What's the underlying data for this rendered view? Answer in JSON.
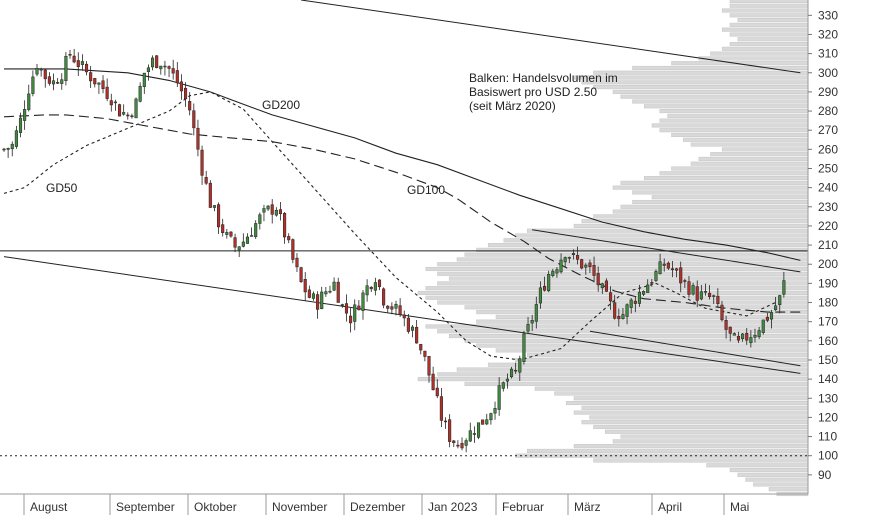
{
  "chart_data": {
    "type": "candlestick",
    "title": "",
    "xlabel": "",
    "ylabel": "",
    "ylim": [
      80,
      338
    ],
    "yticks": [
      90,
      100,
      110,
      120,
      130,
      140,
      150,
      160,
      170,
      180,
      190,
      200,
      210,
      220,
      230,
      240,
      250,
      260,
      270,
      280,
      290,
      300,
      310,
      320,
      330
    ],
    "months": [
      "August",
      "September",
      "Oktober",
      "November",
      "Dezember",
      "Jan 2023",
      "Februar",
      "März",
      "April",
      "Mai"
    ],
    "annotation": [
      "Balken: Handelsvolumen im",
      "Basiswert pro USD 2.50",
      "(seit März 2020)"
    ],
    "ma_labels": {
      "gd50": "GD50",
      "gd100": "GD100",
      "gd200": "GD200"
    },
    "ma_lines": {
      "gd200": [
        [
          0,
          302
        ],
        [
          15,
          302
        ],
        [
          30,
          300
        ],
        [
          40,
          296
        ],
        [
          50,
          290
        ],
        [
          55,
          286
        ],
        [
          65,
          278
        ],
        [
          75,
          272
        ],
        [
          85,
          266
        ],
        [
          95,
          258
        ],
        [
          105,
          252
        ],
        [
          115,
          244
        ],
        [
          125,
          236
        ],
        [
          135,
          229
        ],
        [
          145,
          222
        ],
        [
          155,
          217
        ],
        [
          165,
          213
        ],
        [
          175,
          210
        ],
        [
          185,
          206
        ],
        [
          193,
          202
        ]
      ],
      "gd100": [
        [
          0,
          277
        ],
        [
          10,
          278
        ],
        [
          15,
          278
        ],
        [
          25,
          276
        ],
        [
          35,
          272
        ],
        [
          45,
          268
        ],
        [
          55,
          266
        ],
        [
          65,
          264
        ],
        [
          75,
          260
        ],
        [
          85,
          255
        ],
        [
          95,
          248
        ],
        [
          105,
          240
        ],
        [
          110,
          234
        ],
        [
          118,
          222
        ],
        [
          126,
          212
        ],
        [
          132,
          203
        ],
        [
          140,
          194
        ],
        [
          148,
          186
        ],
        [
          155,
          182
        ],
        [
          165,
          180
        ],
        [
          175,
          177
        ],
        [
          185,
          175
        ],
        [
          193,
          175
        ]
      ],
      "gd50": [
        [
          0,
          237
        ],
        [
          5,
          240
        ],
        [
          12,
          252
        ],
        [
          20,
          262
        ],
        [
          30,
          271
        ],
        [
          40,
          280
        ],
        [
          45,
          288
        ],
        [
          50,
          290
        ],
        [
          58,
          281
        ],
        [
          65,
          264
        ],
        [
          75,
          240
        ],
        [
          85,
          216
        ],
        [
          95,
          193
        ],
        [
          105,
          175
        ],
        [
          112,
          160
        ],
        [
          118,
          152
        ],
        [
          125,
          150
        ],
        [
          135,
          156
        ],
        [
          142,
          170
        ],
        [
          150,
          185
        ],
        [
          158,
          190
        ],
        [
          163,
          185
        ],
        [
          170,
          177
        ],
        [
          180,
          173
        ],
        [
          187,
          180
        ]
      ]
    },
    "horizontal_lines": [
      {
        "y": 207,
        "style": "solid"
      },
      {
        "y": 100,
        "style": "dotted"
      }
    ],
    "trend_lines": [
      {
        "from": [
          0,
          204
        ],
        "to": [
          193,
          143
        ]
      },
      {
        "from": [
          72,
          338
        ],
        "to": [
          193,
          300
        ]
      },
      {
        "from": [
          128,
          218
        ],
        "to": [
          193,
          196
        ]
      },
      {
        "from": [
          142,
          165
        ],
        "to": [
          193,
          147
        ]
      }
    ],
    "volume_profile": [
      {
        "price": 80,
        "volume": 8
      },
      {
        "price": 82.5,
        "volume": 10
      },
      {
        "price": 85,
        "volume": 14
      },
      {
        "price": 87.5,
        "volume": 16
      },
      {
        "price": 90,
        "volume": 18
      },
      {
        "price": 92.5,
        "volume": 20
      },
      {
        "price": 95,
        "volume": 26
      },
      {
        "price": 97.5,
        "volume": 55
      },
      {
        "price": 100,
        "volume": 75
      },
      {
        "price": 102.5,
        "volume": 72
      },
      {
        "price": 105,
        "volume": 60
      },
      {
        "price": 107.5,
        "volume": 50
      },
      {
        "price": 110,
        "volume": 48
      },
      {
        "price": 112.5,
        "volume": 52
      },
      {
        "price": 115,
        "volume": 55
      },
      {
        "price": 117.5,
        "volume": 58
      },
      {
        "price": 120,
        "volume": 56
      },
      {
        "price": 122.5,
        "volume": 60
      },
      {
        "price": 125,
        "volume": 58
      },
      {
        "price": 127.5,
        "volume": 62
      },
      {
        "price": 130,
        "volume": 60
      },
      {
        "price": 132.5,
        "volume": 65
      },
      {
        "price": 135,
        "volume": 70
      },
      {
        "price": 137.5,
        "volume": 88
      },
      {
        "price": 140,
        "volume": 100
      },
      {
        "price": 142.5,
        "volume": 95
      },
      {
        "price": 145,
        "volume": 90
      },
      {
        "price": 147.5,
        "volume": 82
      },
      {
        "price": 150,
        "volume": 75
      },
      {
        "price": 152.5,
        "volume": 72
      },
      {
        "price": 155,
        "volume": 80
      },
      {
        "price": 157.5,
        "volume": 85
      },
      {
        "price": 160,
        "volume": 88
      },
      {
        "price": 162.5,
        "volume": 92
      },
      {
        "price": 165,
        "volume": 95
      },
      {
        "price": 167.5,
        "volume": 98
      },
      {
        "price": 170,
        "volume": 85
      },
      {
        "price": 172.5,
        "volume": 80
      },
      {
        "price": 175,
        "volume": 85
      },
      {
        "price": 177.5,
        "volume": 88
      },
      {
        "price": 180,
        "volume": 95
      },
      {
        "price": 182.5,
        "volume": 98
      },
      {
        "price": 185,
        "volume": 100
      },
      {
        "price": 187.5,
        "volume": 98
      },
      {
        "price": 190,
        "volume": 95
      },
      {
        "price": 192.5,
        "volume": 92
      },
      {
        "price": 195,
        "volume": 95
      },
      {
        "price": 197.5,
        "volume": 98
      },
      {
        "price": 200,
        "volume": 95
      },
      {
        "price": 202.5,
        "volume": 90
      },
      {
        "price": 205,
        "volume": 88
      },
      {
        "price": 207.5,
        "volume": 85
      },
      {
        "price": 210,
        "volume": 82
      },
      {
        "price": 212.5,
        "volume": 78
      },
      {
        "price": 215,
        "volume": 75
      },
      {
        "price": 217.5,
        "volume": 72
      },
      {
        "price": 220,
        "volume": 60
      },
      {
        "price": 222.5,
        "volume": 58
      },
      {
        "price": 225,
        "volume": 55
      },
      {
        "price": 227.5,
        "volume": 50
      },
      {
        "price": 230,
        "volume": 48
      },
      {
        "price": 232.5,
        "volume": 45
      },
      {
        "price": 235,
        "volume": 40
      },
      {
        "price": 237.5,
        "volume": 45
      },
      {
        "price": 240,
        "volume": 50
      },
      {
        "price": 242.5,
        "volume": 48
      },
      {
        "price": 245,
        "volume": 42
      },
      {
        "price": 247.5,
        "volume": 38
      },
      {
        "price": 250,
        "volume": 35
      },
      {
        "price": 252.5,
        "volume": 30
      },
      {
        "price": 255,
        "volume": 28
      },
      {
        "price": 257.5,
        "volume": 25
      },
      {
        "price": 260,
        "volume": 22
      },
      {
        "price": 262.5,
        "volume": 30
      },
      {
        "price": 265,
        "volume": 32
      },
      {
        "price": 267.5,
        "volume": 35
      },
      {
        "price": 270,
        "volume": 38
      },
      {
        "price": 272.5,
        "volume": 40
      },
      {
        "price": 275,
        "volume": 38
      },
      {
        "price": 277.5,
        "volume": 36
      },
      {
        "price": 280,
        "volume": 38
      },
      {
        "price": 282.5,
        "volume": 42
      },
      {
        "price": 285,
        "volume": 45
      },
      {
        "price": 287.5,
        "volume": 48
      },
      {
        "price": 290,
        "volume": 50
      },
      {
        "price": 292.5,
        "volume": 55
      },
      {
        "price": 295,
        "volume": 58
      },
      {
        "price": 297.5,
        "volume": 60
      },
      {
        "price": 300,
        "volume": 55
      },
      {
        "price": 302.5,
        "volume": 45
      },
      {
        "price": 305,
        "volume": 35
      },
      {
        "price": 307.5,
        "volume": 28
      },
      {
        "price": 310,
        "volume": 25
      },
      {
        "price": 312.5,
        "volume": 22
      },
      {
        "price": 315,
        "volume": 20
      },
      {
        "price": 317.5,
        "volume": 18
      },
      {
        "price": 320,
        "volume": 20
      },
      {
        "price": 322.5,
        "volume": 22
      },
      {
        "price": 325,
        "volume": 20
      },
      {
        "price": 327.5,
        "volume": 18
      },
      {
        "price": 330,
        "volume": 20
      },
      {
        "price": 332.5,
        "volume": 22
      },
      {
        "price": 335,
        "volume": 20
      },
      {
        "price": 337.5,
        "volume": 20
      }
    ],
    "price_path": [
      [
        0,
        260
      ],
      [
        2,
        262
      ],
      [
        4,
        275
      ],
      [
        6,
        292
      ],
      [
        8,
        305
      ],
      [
        10,
        298
      ],
      [
        12,
        295
      ],
      [
        14,
        300
      ],
      [
        16,
        310
      ],
      [
        18,
        305
      ],
      [
        20,
        300
      ],
      [
        22,
        296
      ],
      [
        24,
        292
      ],
      [
        26,
        287
      ],
      [
        28,
        280
      ],
      [
        30,
        278
      ],
      [
        32,
        284
      ],
      [
        34,
        300
      ],
      [
        36,
        306
      ],
      [
        38,
        306
      ],
      [
        40,
        302
      ],
      [
        42,
        295
      ],
      [
        44,
        286
      ],
      [
        45,
        281
      ],
      [
        46,
        270
      ],
      [
        48,
        250
      ],
      [
        50,
        232
      ],
      [
        52,
        222
      ],
      [
        54,
        214
      ],
      [
        56,
        209
      ],
      [
        58,
        212
      ],
      [
        60,
        218
      ],
      [
        62,
        224
      ],
      [
        64,
        228
      ],
      [
        66,
        230
      ],
      [
        68,
        216
      ],
      [
        70,
        202
      ],
      [
        72,
        190
      ],
      [
        74,
        183
      ],
      [
        76,
        180
      ],
      [
        78,
        186
      ],
      [
        80,
        190
      ],
      [
        82,
        178
      ],
      [
        84,
        172
      ],
      [
        86,
        180
      ],
      [
        88,
        188
      ],
      [
        90,
        194
      ],
      [
        92,
        182
      ],
      [
        94,
        178
      ],
      [
        96,
        174
      ],
      [
        98,
        168
      ],
      [
        100,
        162
      ],
      [
        102,
        150
      ],
      [
        104,
        135
      ],
      [
        106,
        120
      ],
      [
        108,
        110
      ],
      [
        110,
        106
      ],
      [
        112,
        110
      ],
      [
        114,
        114
      ],
      [
        116,
        118
      ],
      [
        118,
        124
      ],
      [
        120,
        133
      ],
      [
        122,
        140
      ],
      [
        124,
        143
      ],
      [
        126,
        160
      ],
      [
        128,
        172
      ],
      [
        130,
        185
      ],
      [
        132,
        195
      ],
      [
        134,
        200
      ],
      [
        136,
        207
      ],
      [
        138,
        203
      ],
      [
        140,
        200
      ],
      [
        142,
        197
      ],
      [
        144,
        190
      ],
      [
        146,
        182
      ],
      [
        148,
        175
      ],
      [
        150,
        174
      ],
      [
        152,
        180
      ],
      [
        154,
        185
      ],
      [
        156,
        190
      ],
      [
        158,
        195
      ],
      [
        160,
        200
      ],
      [
        162,
        197
      ],
      [
        164,
        192
      ],
      [
        166,
        188
      ],
      [
        168,
        184
      ],
      [
        170,
        183
      ],
      [
        172,
        182
      ],
      [
        174,
        170
      ],
      [
        176,
        162
      ],
      [
        178,
        158
      ],
      [
        180,
        162
      ],
      [
        182,
        165
      ],
      [
        184,
        170
      ],
      [
        186,
        175
      ],
      [
        188,
        182
      ],
      [
        189,
        190
      ]
    ],
    "candle_count": 190
  }
}
